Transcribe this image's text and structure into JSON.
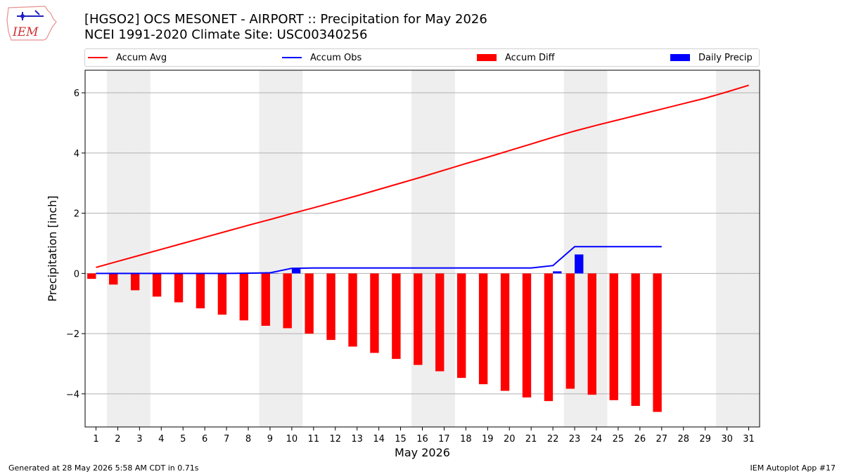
{
  "title_line1": "[HGSO2] OCS MESONET - AIRPORT :: Precipitation for May 2026",
  "title_line2": "NCEI 1991-2020 Climate Site: USC00340256",
  "logo_text": "IEM",
  "legend": {
    "accum_avg": "Accum Avg",
    "accum_obs": "Accum Obs",
    "accum_diff": "Accum Diff",
    "daily_precip": "Daily Precip"
  },
  "footer_left": "Generated at 28 May 2026 5:58 AM CDT in 0.71s",
  "footer_right": "IEM Autoplot App #17",
  "colors": {
    "accum_avg": "#ff0000",
    "accum_obs": "#0000ff",
    "accum_diff": "#ff0000",
    "daily_precip": "#0000ff",
    "weekend_shade": "#eeeeee",
    "grid": "#b0b0b0"
  },
  "chart_data": {
    "type": "bar",
    "xlabel": "May 2026",
    "ylabel": "Precipitation [inch]",
    "ylim": [
      -5.1,
      6.75
    ],
    "yticks": [
      -4,
      -2,
      0,
      2,
      4,
      6
    ],
    "ytick_labels": [
      "−4",
      "−2",
      "0",
      "2",
      "4",
      "6"
    ],
    "days": [
      1,
      2,
      3,
      4,
      5,
      6,
      7,
      8,
      9,
      10,
      11,
      12,
      13,
      14,
      15,
      16,
      17,
      18,
      19,
      20,
      21,
      22,
      23,
      24,
      25,
      26,
      27,
      28,
      29,
      30,
      31
    ],
    "weekend_days": [
      2,
      3,
      9,
      10,
      16,
      17,
      23,
      24,
      30,
      31
    ],
    "grid": "y",
    "legend_position": "top",
    "series": [
      {
        "name": "Accum Avg",
        "kind": "line",
        "values": [
          0.2,
          0.4,
          0.6,
          0.8,
          1.0,
          1.2,
          1.4,
          1.6,
          1.79,
          1.99,
          2.18,
          2.38,
          2.58,
          2.79,
          3.0,
          3.21,
          3.43,
          3.65,
          3.86,
          4.08,
          4.3,
          4.52,
          4.73,
          4.92,
          5.1,
          5.28,
          5.46,
          5.64,
          5.82,
          6.03,
          6.25
        ]
      },
      {
        "name": "Accum Obs",
        "kind": "line",
        "values": [
          0.0,
          0.0,
          0.0,
          0.0,
          0.0,
          0.0,
          0.0,
          0.01,
          0.02,
          0.17,
          0.18,
          0.18,
          0.18,
          0.18,
          0.18,
          0.18,
          0.18,
          0.18,
          0.18,
          0.18,
          0.18,
          0.26,
          0.89,
          0.89,
          0.89,
          0.89,
          0.89
        ]
      },
      {
        "name": "Accum Diff",
        "kind": "bar",
        "values": [
          -0.18,
          -0.37,
          -0.56,
          -0.77,
          -0.96,
          -1.16,
          -1.37,
          -1.56,
          -1.74,
          -1.82,
          -2.0,
          -2.21,
          -2.43,
          -2.64,
          -2.84,
          -3.04,
          -3.25,
          -3.47,
          -3.68,
          -3.9,
          -4.12,
          -4.24,
          -3.83,
          -4.03,
          -4.21,
          -4.4,
          -4.6
        ]
      },
      {
        "name": "Daily Precip",
        "kind": "bar",
        "values": [
          0,
          0,
          0,
          0,
          0,
          0,
          0,
          0.01,
          0.01,
          0.15,
          0,
          0,
          0,
          0,
          0,
          0,
          0,
          0,
          0,
          0,
          0,
          0.07,
          0.63,
          0,
          0,
          0,
          0
        ]
      }
    ]
  }
}
